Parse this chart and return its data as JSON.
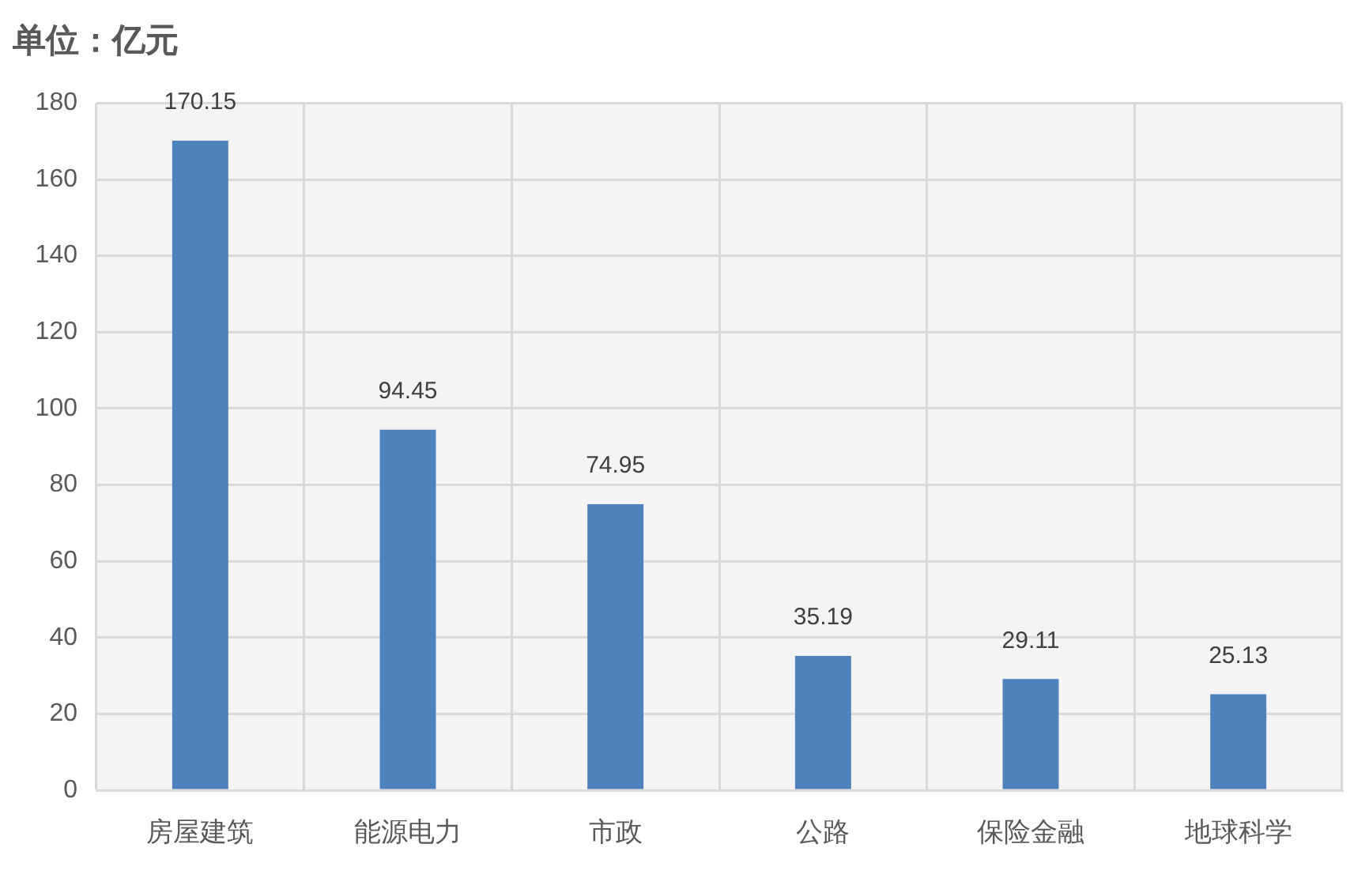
{
  "chart_data": {
    "type": "bar",
    "title": "单位：亿元",
    "categories": [
      "房屋建筑",
      "能源电力",
      "市政",
      "公路",
      "保险金融",
      "地球科学"
    ],
    "values": [
      170.15,
      94.45,
      74.95,
      35.19,
      29.11,
      25.13
    ],
    "color": "#4f81bd",
    "ylim": [
      0,
      180
    ],
    "yticks": [
      0,
      20,
      40,
      60,
      80,
      100,
      120,
      140,
      160,
      180
    ],
    "grid": true,
    "data_labels": true
  }
}
